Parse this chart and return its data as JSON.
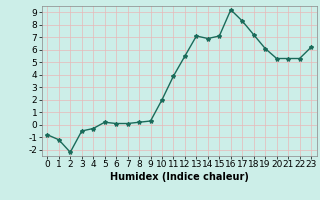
{
  "title": "",
  "xlabel": "Humidex (Indice chaleur)",
  "ylabel": "",
  "x": [
    0,
    1,
    2,
    3,
    4,
    5,
    6,
    7,
    8,
    9,
    10,
    11,
    12,
    13,
    14,
    15,
    16,
    17,
    18,
    19,
    20,
    21,
    22,
    23
  ],
  "y": [
    -0.8,
    -1.2,
    -2.2,
    -0.5,
    -0.3,
    0.2,
    0.1,
    0.1,
    0.2,
    0.3,
    2.0,
    3.9,
    5.5,
    7.1,
    6.9,
    7.1,
    9.2,
    8.3,
    7.2,
    6.1,
    5.3,
    5.3,
    5.3,
    6.2
  ],
  "line_color": "#1a6b5a",
  "marker": "*",
  "marker_size": 3,
  "bg_color": "#cceee8",
  "grid_color": "#e8b8b8",
  "ylim": [
    -2.5,
    9.5
  ],
  "yticks": [
    -2,
    -1,
    0,
    1,
    2,
    3,
    4,
    5,
    6,
    7,
    8,
    9
  ],
  "xticks": [
    0,
    1,
    2,
    3,
    4,
    5,
    6,
    7,
    8,
    9,
    10,
    11,
    12,
    13,
    14,
    15,
    16,
    17,
    18,
    19,
    20,
    21,
    22,
    23
  ],
  "xlabel_fontsize": 7,
  "tick_fontsize": 6.5,
  "line_width": 1.0
}
